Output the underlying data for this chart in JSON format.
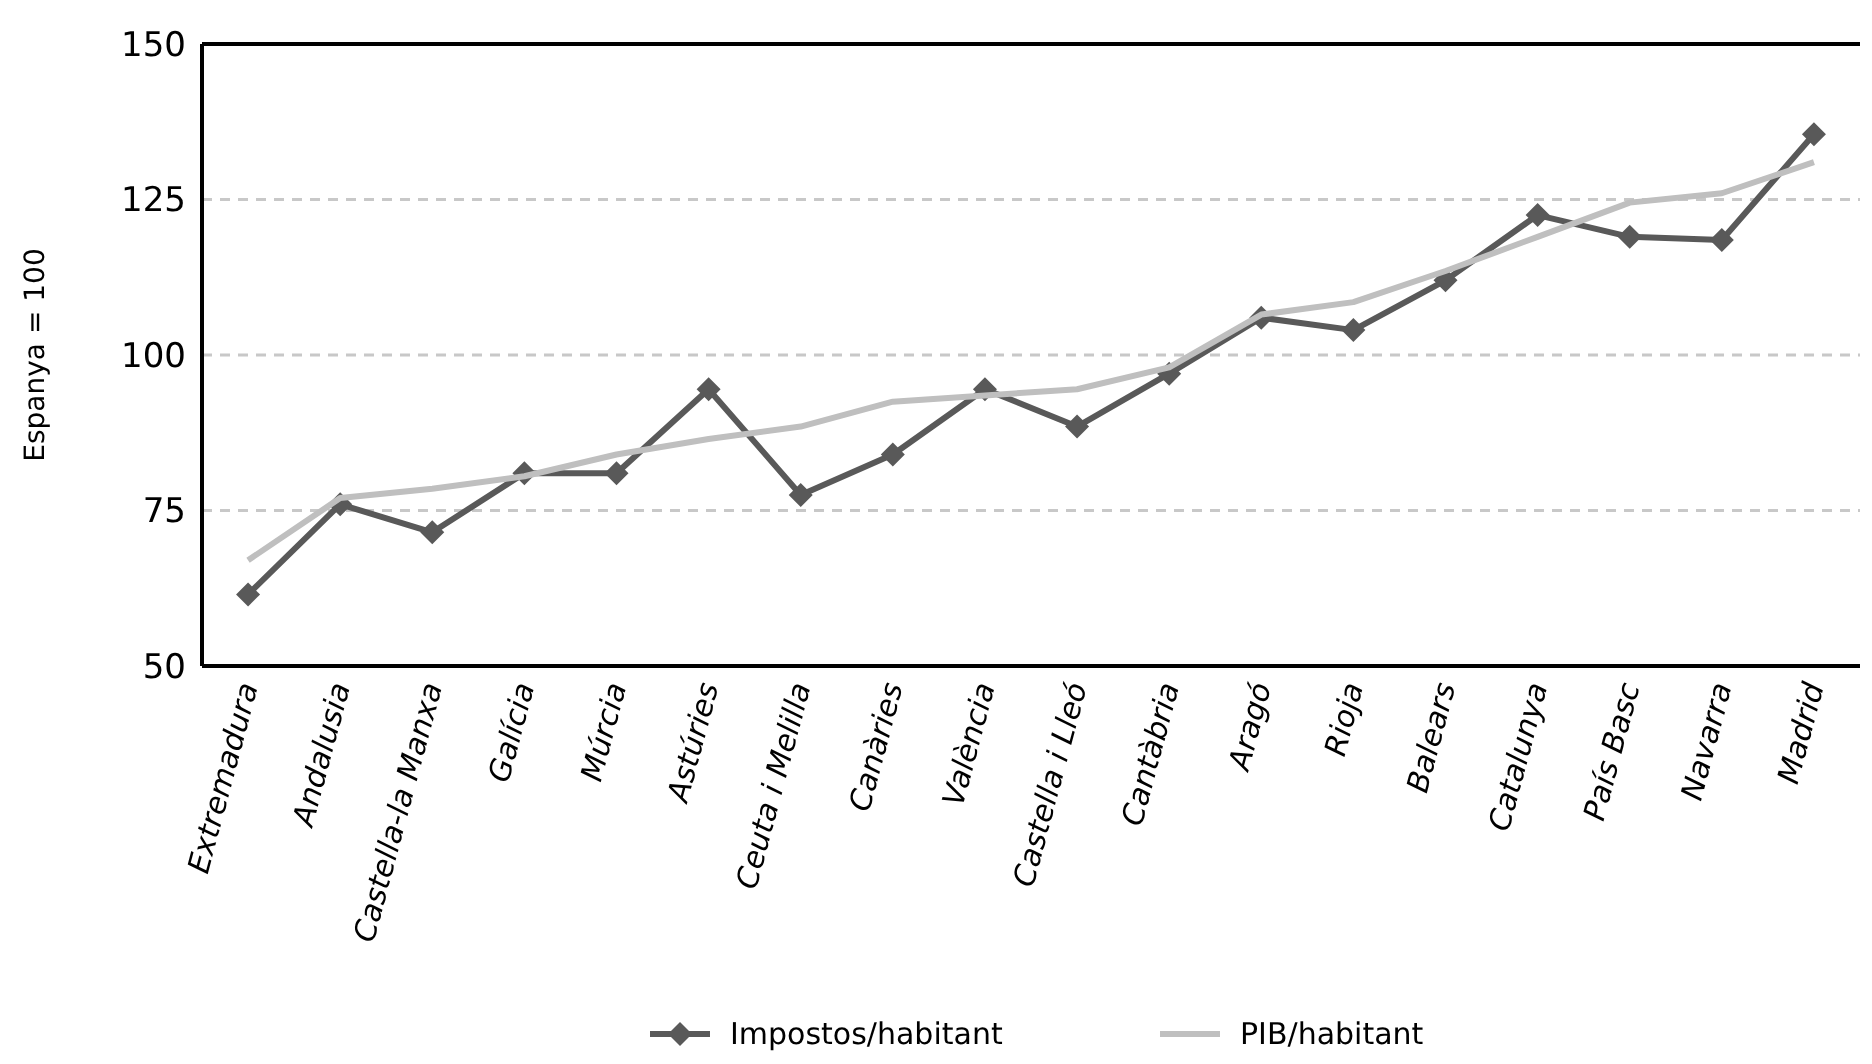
{
  "chart_data": {
    "type": "line",
    "ylabel": "Espanya = 100",
    "categories": [
      "Extremadura",
      "Andalusia",
      "Castella-la Manxa",
      "Galícia",
      "Múrcia",
      "Astúries",
      "Ceuta i Melilla",
      "Canàries",
      "València",
      "Castella i Lleó",
      "Cantàbria",
      "Aragó",
      "Rioja",
      "Balears",
      "Catalunya",
      "País Basc",
      "Navarra",
      "Madrid"
    ],
    "series": [
      {
        "name": "Impostos/habitant",
        "color": "#595959",
        "marker": "diamond",
        "values": [
          61.5,
          76,
          71.5,
          81,
          81,
          94.5,
          77.5,
          84,
          94.5,
          88.5,
          97,
          106,
          104,
          112,
          122.5,
          119,
          118.5,
          135.5
        ]
      },
      {
        "name": "PIB/habitant",
        "color": "#bfbfbf",
        "marker": "none",
        "values": [
          67,
          77,
          78.5,
          80.5,
          84,
          86.5,
          88.5,
          92.5,
          93.5,
          94.5,
          98,
          106.5,
          108.5,
          113.5,
          119,
          124.5,
          126,
          131
        ]
      }
    ],
    "ylim": [
      50,
      150
    ],
    "yticks": [
      50,
      75,
      100,
      125,
      150
    ],
    "grid": "y",
    "legend": "bottom",
    "line_style": "solid"
  }
}
